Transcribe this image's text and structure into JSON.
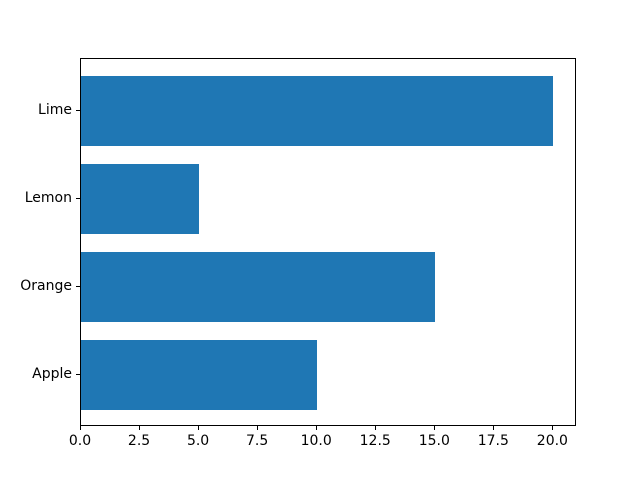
{
  "chart_data": {
    "type": "bar",
    "orientation": "horizontal",
    "title": "",
    "xlabel": "",
    "ylabel": "",
    "categories": [
      "Apple",
      "Orange",
      "Lemon",
      "Lime"
    ],
    "values": [
      10,
      15,
      5,
      20
    ],
    "categories_displayed_top_to_bottom": [
      "Lime",
      "Lemon",
      "Orange",
      "Apple"
    ],
    "bar_color": "#1f77b4",
    "axis_color": "#000000",
    "text_color": "#000000",
    "background_color": "#ffffff",
    "xlim": [
      0,
      21
    ],
    "x_ticks": [
      0,
      2.5,
      5,
      7.5,
      10,
      12.5,
      15,
      17.5,
      20
    ],
    "x_tick_labels": [
      "0.0",
      "2.5",
      "5.0",
      "7.5",
      "10.0",
      "12.5",
      "15.0",
      "17.5",
      "20.0"
    ],
    "grid": false,
    "legend": false
  }
}
